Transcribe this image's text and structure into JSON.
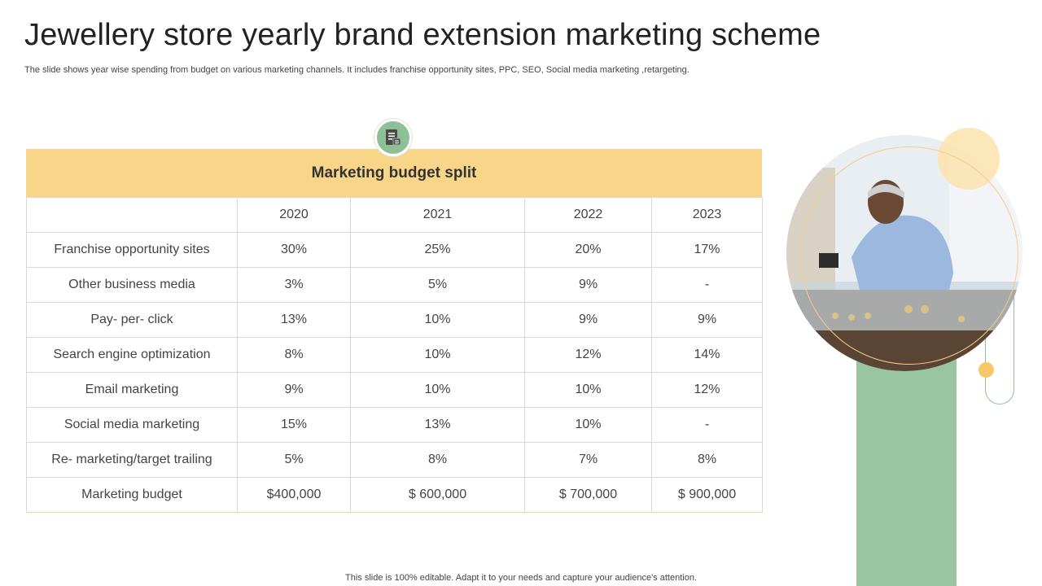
{
  "slide": {
    "title": "Jewellery store yearly brand extension marketing scheme",
    "subtitle": "The slide shows year wise spending from budget on various marketing channels.  It includes franchise opportunity sites, PPC, SEO, Social media marketing ,retargeting.",
    "footer": "This slide is 100% editable. Adapt it to your needs and capture your audience's attention."
  },
  "colors": {
    "header_yellow": "#f9d58a",
    "accent_green": "#99c6a0",
    "icon_green": "#8fbf96"
  },
  "icon": {
    "name": "document-list-icon"
  },
  "photo": {
    "subject": "jeweller-at-display-counter"
  },
  "table": {
    "header": "Marketing budget split",
    "columns": [
      "",
      "2020",
      "2021",
      "2022",
      "2023"
    ],
    "rows": [
      [
        "Franchise opportunity  sites",
        "30%",
        "25%",
        "20%",
        "17%"
      ],
      [
        "Other business media",
        "3%",
        "5%",
        "9%",
        "-"
      ],
      [
        "Pay- per- click",
        "13%",
        "10%",
        "9%",
        "9%"
      ],
      [
        "Search engine optimization",
        "8%",
        "10%",
        "12%",
        "14%"
      ],
      [
        "Email marketing",
        "9%",
        "10%",
        "10%",
        "12%"
      ],
      [
        "Social media marketing",
        "15%",
        "13%",
        "10%",
        "-"
      ],
      [
        "Re- marketing/target trailing",
        "5%",
        "8%",
        "7%",
        "8%"
      ],
      [
        "Marketing budget",
        "$400,000",
        "$ 600,000",
        "$ 700,000",
        "$ 900,000"
      ]
    ]
  }
}
